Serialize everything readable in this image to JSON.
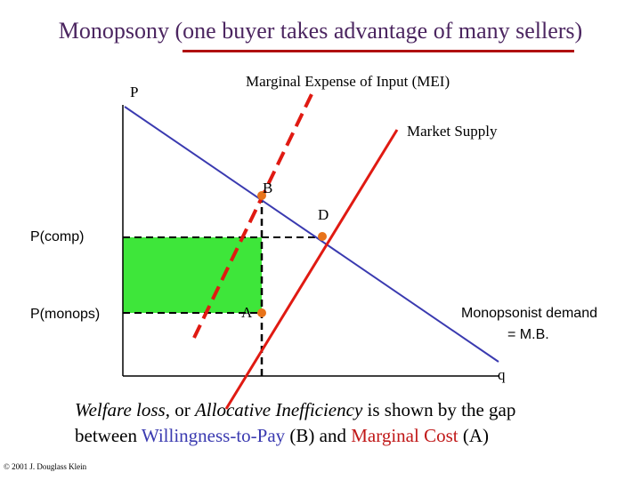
{
  "title": "Monopsony (one buyer takes advantage of many sellers)",
  "labels": {
    "p_axis": "P",
    "mei": "Marginal Expense of Input (MEI)",
    "market_supply": "Market Supply",
    "point_b": "B",
    "point_d": "D",
    "point_a": "A",
    "p_comp": "P(comp)",
    "p_monops": "P(monops)",
    "demand_line1": "Monopsonist demand",
    "demand_line2": "= M.B.",
    "q_axis": "q"
  },
  "caption": {
    "part1": "Welfare loss",
    "part2": ", or ",
    "part3": "Allocative Inefficiency",
    "part4": " is shown by the gap",
    "part5": "between ",
    "part6": "Willingness-to-Pay",
    "part7": " (B) and ",
    "part8": "Marginal Cost",
    "part9": " (A)"
  },
  "copyright": "© 2001 J. Douglass Klein",
  "colors": {
    "demand": "#3a3ab0",
    "supply": "#e01a12",
    "points": "#e8731a",
    "welfare_area": "#3ee63a",
    "title": "#4b2560"
  }
}
